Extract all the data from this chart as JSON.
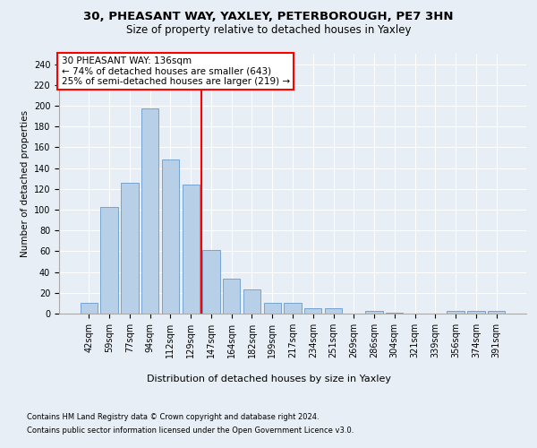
{
  "title1": "30, PHEASANT WAY, YAXLEY, PETERBOROUGH, PE7 3HN",
  "title2": "Size of property relative to detached houses in Yaxley",
  "xlabel": "Distribution of detached houses by size in Yaxley",
  "ylabel": "Number of detached properties",
  "categories": [
    "42sqm",
    "59sqm",
    "77sqm",
    "94sqm",
    "112sqm",
    "129sqm",
    "147sqm",
    "164sqm",
    "182sqm",
    "199sqm",
    "217sqm",
    "234sqm",
    "251sqm",
    "269sqm",
    "286sqm",
    "304sqm",
    "321sqm",
    "339sqm",
    "356sqm",
    "374sqm",
    "391sqm"
  ],
  "values": [
    10,
    103,
    126,
    197,
    148,
    124,
    61,
    34,
    23,
    10,
    10,
    5,
    5,
    0,
    3,
    1,
    0,
    0,
    3,
    3,
    3
  ],
  "bar_color": "#b8cfe8",
  "bar_edge_color": "#6699cc",
  "vline_x": 5.5,
  "vline_color": "red",
  "annotation_text": "30 PHEASANT WAY: 136sqm\n← 74% of detached houses are smaller (643)\n25% of semi-detached houses are larger (219) →",
  "ylim": [
    0,
    250
  ],
  "yticks": [
    0,
    20,
    40,
    60,
    80,
    100,
    120,
    140,
    160,
    180,
    200,
    220,
    240
  ],
  "footer1": "Contains HM Land Registry data © Crown copyright and database right 2024.",
  "footer2": "Contains public sector information licensed under the Open Government Licence v3.0.",
  "bg_color": "#e8eef5",
  "plot_bg_color": "#e8eef5",
  "grid_color": "#ffffff",
  "title1_fontsize": 9.5,
  "title2_fontsize": 8.5,
  "tick_fontsize": 7,
  "ylabel_fontsize": 7.5,
  "xlabel_fontsize": 8,
  "annotation_fontsize": 7.5,
  "footer_fontsize": 6
}
